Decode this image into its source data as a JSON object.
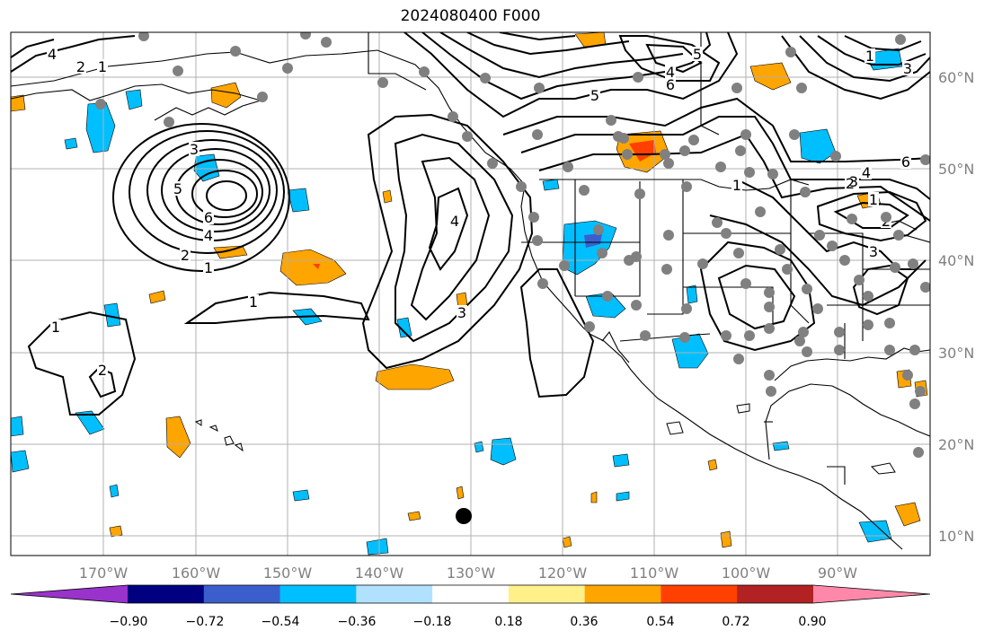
{
  "title": "2024080400 F000",
  "lon_ticks": [
    "170°W",
    "160°W",
    "150°W",
    "140°W",
    "130°W",
    "120°W",
    "110°W",
    "100°W",
    "90°W"
  ],
  "lat_ticks": [
    "60°N",
    "50°N",
    "40°N",
    "30°N",
    "20°N",
    "10°N"
  ],
  "colorbar": {
    "colors": [
      "#9933cc",
      "#000080",
      "#3a5fcd",
      "#00bfff",
      "#b0e2ff",
      "#ffffff",
      "#fff08a",
      "#ffa500",
      "#ff4000",
      "#b22222",
      "#ff88aa"
    ],
    "tick_labels": [
      "−0.90",
      "−0.72",
      "−0.54",
      "−0.36",
      "−0.18",
      "0.18",
      "0.36",
      "0.54",
      "0.72",
      "0.90"
    ]
  },
  "contour_labels": [
    "4",
    "2",
    "1",
    "3",
    "5",
    "6",
    "4",
    "2",
    "1",
    "1",
    "1",
    "2",
    "4",
    "3",
    "5",
    "4",
    "6",
    "5",
    "1",
    "2",
    "1",
    "3",
    "4",
    "6",
    "3",
    "2",
    "1",
    "3"
  ],
  "colors": {
    "station": "#808080",
    "marker": "#000000",
    "contour": "#000000",
    "grid": "#b0b0b0",
    "border": "#000000"
  }
}
